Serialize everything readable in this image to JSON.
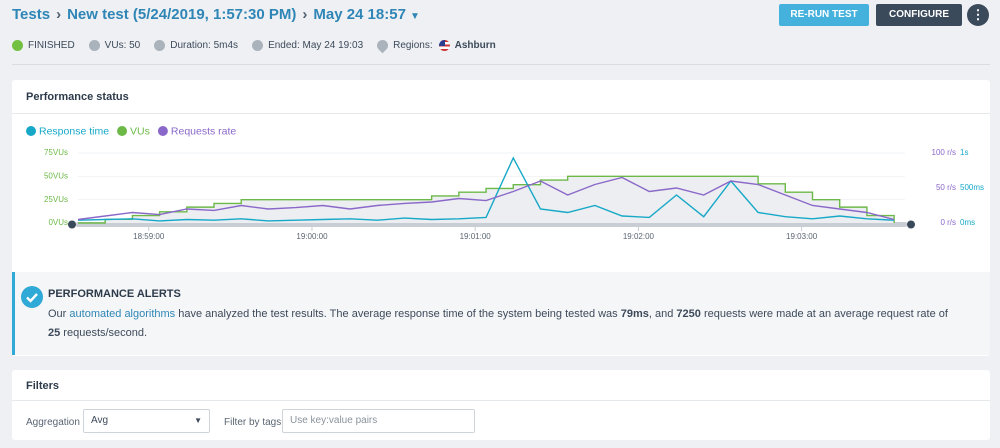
{
  "header": {
    "breadcrumb": [
      "Tests",
      "New test (5/24/2019, 1:57:30 PM)",
      "May 24 18:57"
    ],
    "buttons": [
      "RE-RUN TEST",
      "CONFIGURE"
    ]
  },
  "status": {
    "state": "FINISHED",
    "vus": "VUs: 50",
    "duration": "Duration: 5m4s",
    "ended": "Ended: May 24 19:03",
    "regions_label": "Regions:",
    "region": "Ashburn"
  },
  "panel_title": "Performance status",
  "chart_data": {
    "type": "line",
    "x": [
      "18:58:34",
      "18:58:44",
      "18:58:54",
      "18:59:04",
      "18:59:14",
      "18:59:24",
      "18:59:34",
      "18:59:44",
      "18:59:54",
      "19:00:04",
      "19:00:14",
      "19:00:24",
      "19:00:34",
      "19:00:44",
      "19:00:54",
      "19:01:04",
      "19:01:14",
      "19:01:24",
      "19:01:34",
      "19:01:44",
      "19:01:54",
      "19:02:04",
      "19:02:14",
      "19:02:24",
      "19:02:34",
      "19:02:44",
      "19:02:54",
      "19:03:04",
      "19:03:14",
      "19:03:24",
      "19:03:34"
    ],
    "xlim": [
      "18:58:34",
      "19:03:38"
    ],
    "xticks": [
      "18:59:00",
      "19:00:00",
      "19:01:00",
      "19:02:00",
      "19:03:00"
    ],
    "ylim": [
      0,
      75
    ],
    "yticks": [
      {
        "value": 0,
        "label": "0VUs"
      },
      {
        "value": 25,
        "label": "25VUs"
      },
      {
        "value": 50,
        "label": "50VUs"
      },
      {
        "value": 75,
        "label": "75VUs"
      }
    ],
    "y2lim": [
      0,
      100
    ],
    "y2ticks": [
      {
        "value": 0,
        "label": "0 r/s"
      },
      {
        "value": 50,
        "label": "50 r/s"
      },
      {
        "value": 100,
        "label": "100 r/s"
      }
    ],
    "y3lim": [
      0,
      1000
    ],
    "y3ticks": [
      {
        "value": 0,
        "label": "0ms"
      },
      {
        "value": 500,
        "label": "500ms"
      },
      {
        "value": 1000,
        "label": "1s"
      }
    ],
    "legend": "top-left",
    "series": [
      {
        "name": "Response time",
        "color": "#17a8c8",
        "axis": "y3",
        "values": [
          40,
          50,
          60,
          30,
          50,
          40,
          60,
          30,
          40,
          50,
          60,
          40,
          70,
          50,
          60,
          80,
          930,
          200,
          150,
          250,
          100,
          80,
          400,
          90,
          600,
          150,
          90,
          60,
          100,
          60,
          40
        ]
      },
      {
        "name": "VUs",
        "color": "#6cb947",
        "axis": "y",
        "area": true,
        "values": [
          0,
          4,
          8,
          12,
          17,
          21,
          25,
          25,
          25,
          25,
          25,
          25,
          25,
          29,
          33,
          37,
          41,
          46,
          50,
          50,
          50,
          50,
          50,
          50,
          50,
          42,
          33,
          25,
          17,
          8,
          0
        ]
      },
      {
        "name": "Requests rate",
        "color": "#8a68c9",
        "axis": "y2",
        "values": [
          5,
          10,
          15,
          12,
          20,
          18,
          25,
          20,
          22,
          25,
          20,
          25,
          28,
          30,
          35,
          32,
          45,
          60,
          40,
          55,
          65,
          45,
          50,
          40,
          60,
          55,
          40,
          25,
          20,
          15,
          5
        ]
      }
    ]
  },
  "alert": {
    "title": "PERFORMANCE ALERTS",
    "text": [
      "Our ",
      "automated algorithms",
      " have analyzed the test results. The average response time of the system being tested was ",
      "79ms",
      ", and ",
      "7250",
      " requests were made at an average request rate of ",
      "25",
      " requests/second."
    ]
  },
  "filters": {
    "title": "Filters",
    "aggregation_label": "Aggregation",
    "aggregation_value": "Avg",
    "tags_label": "Filter by tags",
    "tags_placeholder": "Use key:value pairs"
  }
}
